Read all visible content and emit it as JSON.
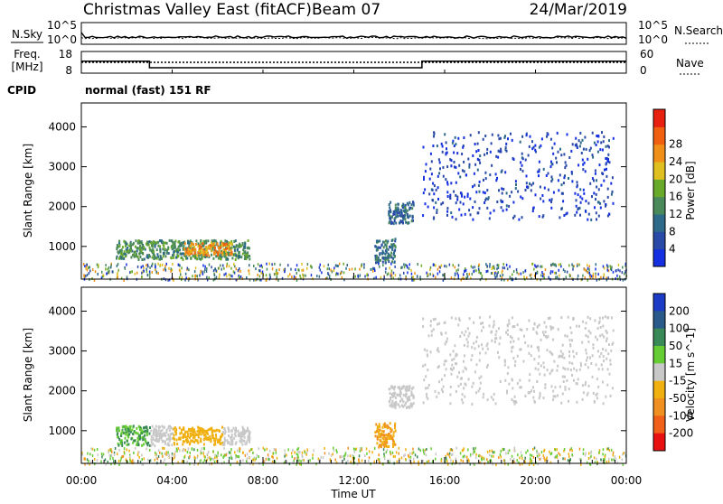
{
  "header": {
    "title": "Christmas Valley East (fitACF)",
    "beam": "Beam 07",
    "date": "24/Mar/2019"
  },
  "noise_panel": {
    "left_label": "N.Sky",
    "right_label": "N.Search",
    "left_ticks": [
      "10^5",
      "10^0"
    ],
    "right_ticks": [
      "10^5",
      "10^0"
    ]
  },
  "freq_panel": {
    "left_label_1": "Freq.",
    "left_label_2": "[MHz]",
    "left_ticks": [
      "18",
      "8"
    ],
    "right_label": "Nave",
    "right_ticks": [
      "60",
      "0"
    ],
    "freq_steps": [
      {
        "start_h": 0,
        "end_h": 3,
        "mhz": 13.5
      },
      {
        "start_h": 3,
        "end_h": 15,
        "mhz": 10.5
      },
      {
        "start_h": 15,
        "end_h": 24,
        "mhz": 13.5
      }
    ],
    "nave_level": 30
  },
  "cpid_panel": {
    "label": "CPID",
    "text": "normal (fast) 151 RF"
  },
  "x_axis": {
    "label": "Time UT",
    "ticks": [
      "00:00",
      "04:00",
      "08:00",
      "12:00",
      "16:00",
      "20:00",
      "00:00"
    ],
    "range_h": [
      0,
      24
    ]
  },
  "chart_data": [
    {
      "type": "heatmap",
      "panel": "power",
      "ylabel": "Slant Range [km]",
      "yticks": [
        "1000",
        "2000",
        "3000",
        "4000"
      ],
      "ylim": [
        180,
        4600
      ],
      "colorbar_label": "Power [dB]",
      "colorbar_ticks": [
        "4",
        "8",
        "12",
        "16",
        "20",
        "24",
        "28"
      ],
      "colorbar_colors": [
        "#1530e0",
        "#2a4aa8",
        "#2e6a8a",
        "#4a8a5a",
        "#6aaa2a",
        "#e0c020",
        "#f09018",
        "#f06010",
        "#e82010"
      ],
      "regions": [
        {
          "t0": 1.5,
          "t1": 7.4,
          "r0": 700,
          "r1": 1180,
          "level": 14
        },
        {
          "t0": 4.5,
          "t1": 6.6,
          "r0": 800,
          "r1": 1120,
          "level": 26
        },
        {
          "t0": 12.9,
          "t1": 13.8,
          "r0": 620,
          "r1": 1220,
          "level": 10
        },
        {
          "t0": 13.5,
          "t1": 14.6,
          "r0": 1600,
          "r1": 2150,
          "level": 9
        },
        {
          "t0": 15.0,
          "t1": 23.4,
          "r0": 1700,
          "r1": 3900,
          "level": 5
        }
      ]
    },
    {
      "type": "heatmap",
      "panel": "velocity",
      "ylabel": "Slant Range [km]",
      "yticks": [
        "1000",
        "2000",
        "3000",
        "4000"
      ],
      "ylim": [
        180,
        4600
      ],
      "colorbar_label": "Velocity [m s^-1]",
      "colorbar_ticks": [
        "200",
        "100",
        "50",
        "15",
        "-15",
        "-50",
        "-100",
        "-200"
      ],
      "colorbar_colors": [
        "#1c3cc8",
        "#2a5a8a",
        "#3a8a58",
        "#66cc33",
        "#c8c8c8",
        "#f0b010",
        "#f09020",
        "#f06018",
        "#e81010"
      ],
      "regions": [
        {
          "t0": 1.5,
          "t1": 3.0,
          "r0": 650,
          "r1": 1150,
          "level": 50
        },
        {
          "t0": 3.0,
          "t1": 4.0,
          "r0": 650,
          "r1": 1150,
          "level": 0
        },
        {
          "t0": 4.0,
          "t1": 6.2,
          "r0": 680,
          "r1": 1120,
          "level": -30
        },
        {
          "t0": 6.2,
          "t1": 7.4,
          "r0": 680,
          "r1": 1120,
          "level": 0
        },
        {
          "t0": 12.9,
          "t1": 13.8,
          "r0": 620,
          "r1": 1220,
          "level": -50
        },
        {
          "t0": 13.5,
          "t1": 14.6,
          "r0": 1600,
          "r1": 2150,
          "level": 0
        },
        {
          "t0": 15.0,
          "t1": 23.4,
          "r0": 1700,
          "r1": 3900,
          "level": 0
        }
      ]
    }
  ]
}
